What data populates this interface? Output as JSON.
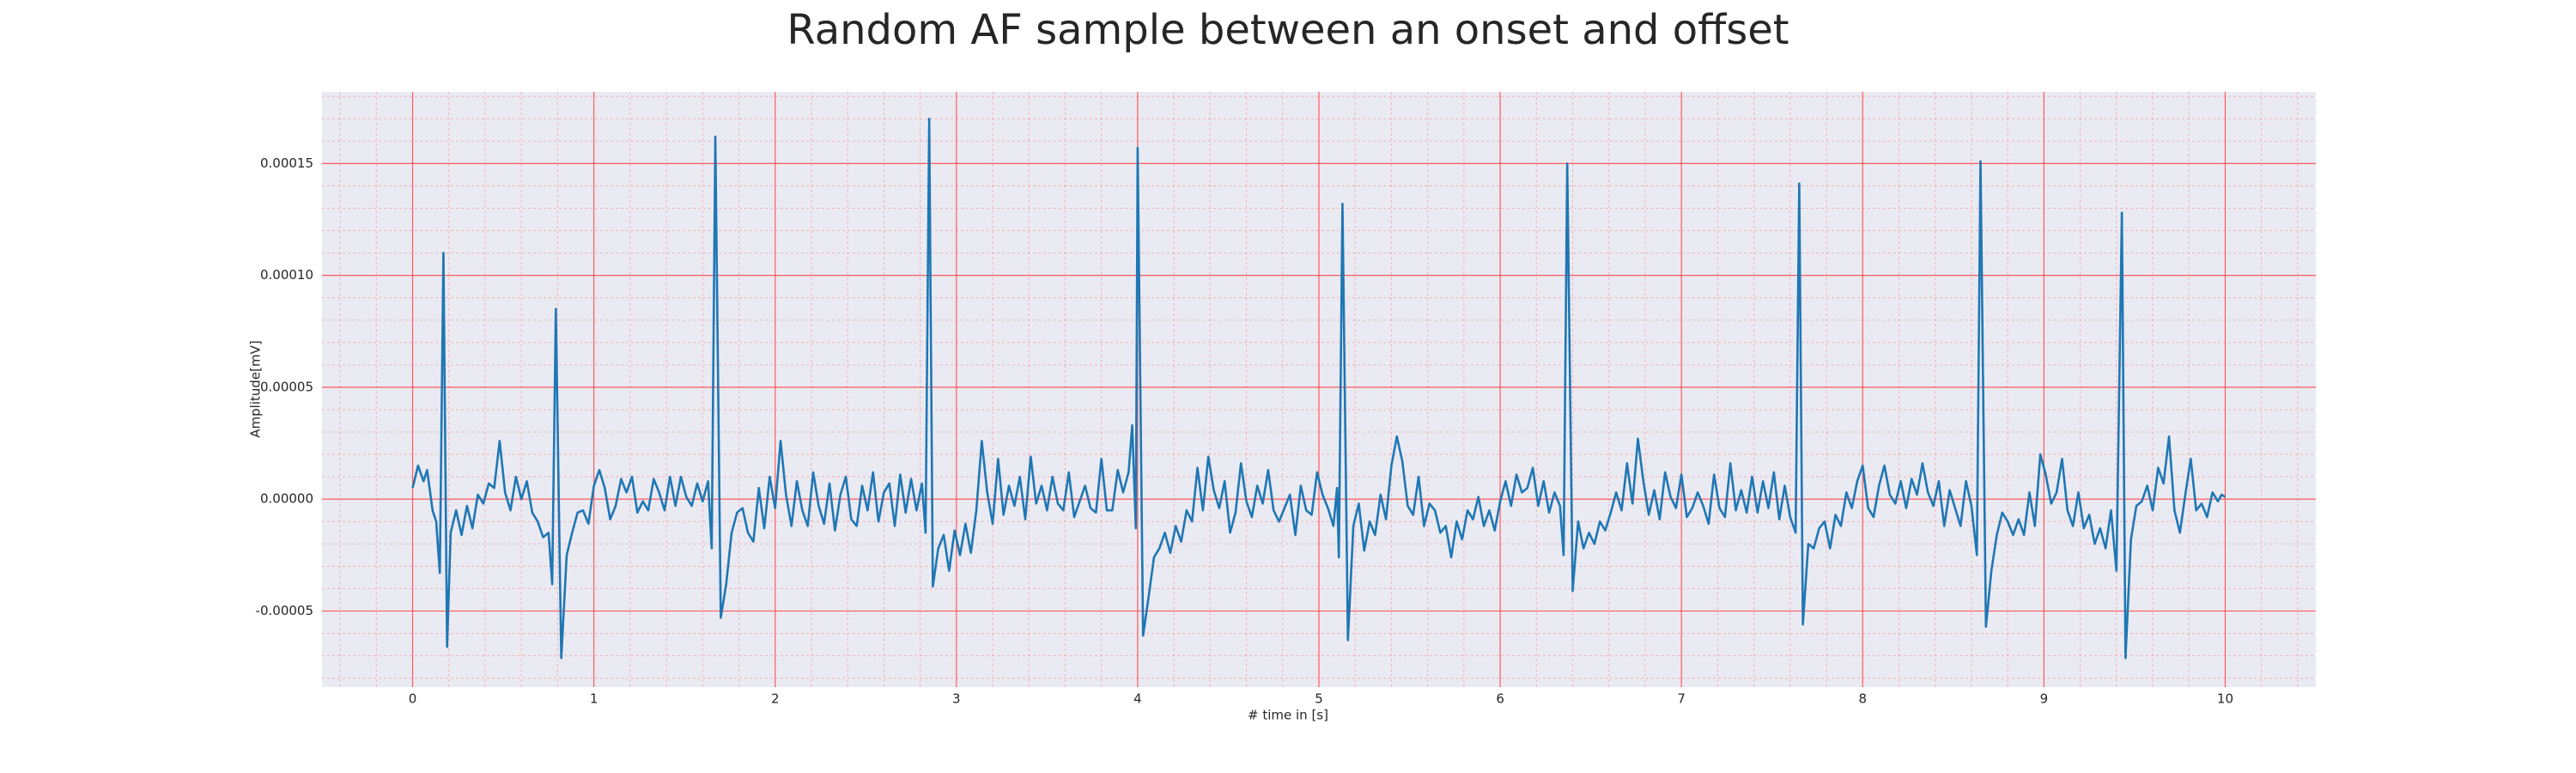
{
  "chart_data": {
    "type": "line",
    "title": "Random AF sample between an onset and offset",
    "xlabel": "# time in [s]",
    "ylabel": "Amplitude[mV]",
    "color": "#1f77b4",
    "background": "#eaeaf2",
    "grid": true,
    "grid_color": "#ff4b4b",
    "minor_grid": true,
    "xlim": [
      -0.5,
      10.5
    ],
    "ylim": [
      -8.4e-05,
      0.000182
    ],
    "xticks": [
      0,
      1,
      2,
      3,
      4,
      5,
      6,
      7,
      8,
      9,
      10
    ],
    "yticks": [
      {
        "value": -5e-05,
        "label": "-0.00005"
      },
      {
        "value": 0,
        "label": "0.00000"
      },
      {
        "value": 5e-05,
        "label": "0.00005"
      },
      {
        "value": 0.0001,
        "label": "0.00010"
      },
      {
        "value": 0.00015,
        "label": "0.00015"
      }
    ],
    "x": [
      0.0,
      0.03,
      0.06,
      0.08,
      0.11,
      0.13,
      0.15,
      0.17,
      0.19,
      0.21,
      0.24,
      0.27,
      0.3,
      0.33,
      0.36,
      0.39,
      0.42,
      0.45,
      0.48,
      0.51,
      0.54,
      0.57,
      0.6,
      0.63,
      0.66,
      0.69,
      0.72,
      0.75,
      0.77,
      0.79,
      0.82,
      0.85,
      0.88,
      0.91,
      0.94,
      0.97,
      1.0,
      1.03,
      1.06,
      1.09,
      1.12,
      1.15,
      1.18,
      1.21,
      1.24,
      1.27,
      1.3,
      1.33,
      1.36,
      1.39,
      1.42,
      1.45,
      1.48,
      1.51,
      1.54,
      1.57,
      1.6,
      1.63,
      1.65,
      1.67,
      1.7,
      1.73,
      1.76,
      1.79,
      1.82,
      1.85,
      1.88,
      1.91,
      1.94,
      1.97,
      2.0,
      2.03,
      2.06,
      2.09,
      2.12,
      2.15,
      2.18,
      2.21,
      2.24,
      2.27,
      2.3,
      2.33,
      2.36,
      2.39,
      2.42,
      2.45,
      2.48,
      2.51,
      2.54,
      2.57,
      2.6,
      2.63,
      2.66,
      2.69,
      2.72,
      2.75,
      2.78,
      2.81,
      2.83,
      2.85,
      2.87,
      2.9,
      2.93,
      2.96,
      2.99,
      3.02,
      3.05,
      3.08,
      3.11,
      3.14,
      3.17,
      3.2,
      3.23,
      3.26,
      3.29,
      3.32,
      3.35,
      3.38,
      3.41,
      3.44,
      3.47,
      3.5,
      3.53,
      3.56,
      3.59,
      3.62,
      3.65,
      3.68,
      3.71,
      3.74,
      3.77,
      3.8,
      3.83,
      3.86,
      3.89,
      3.92,
      3.95,
      3.97,
      3.99,
      4.0,
      4.03,
      4.06,
      4.09,
      4.12,
      4.15,
      4.18,
      4.21,
      4.24,
      4.27,
      4.3,
      4.33,
      4.36,
      4.39,
      4.42,
      4.45,
      4.48,
      4.51,
      4.54,
      4.57,
      4.6,
      4.63,
      4.66,
      4.69,
      4.72,
      4.75,
      4.78,
      4.81,
      4.84,
      4.87,
      4.9,
      4.93,
      4.96,
      4.99,
      5.02,
      5.05,
      5.08,
      5.1,
      5.11,
      5.13,
      5.16,
      5.19,
      5.22,
      5.25,
      5.28,
      5.31,
      5.34,
      5.37,
      5.4,
      5.43,
      5.46,
      5.49,
      5.52,
      5.55,
      5.58,
      5.61,
      5.64,
      5.67,
      5.7,
      5.73,
      5.76,
      5.79,
      5.82,
      5.85,
      5.88,
      5.91,
      5.94,
      5.97,
      6.0,
      6.03,
      6.06,
      6.09,
      6.12,
      6.15,
      6.18,
      6.21,
      6.24,
      6.27,
      6.3,
      6.33,
      6.35,
      6.37,
      6.4,
      6.43,
      6.46,
      6.49,
      6.52,
      6.55,
      6.58,
      6.61,
      6.64,
      6.67,
      6.7,
      6.73,
      6.76,
      6.79,
      6.82,
      6.85,
      6.88,
      6.91,
      6.94,
      6.97,
      7.0,
      7.03,
      7.06,
      7.09,
      7.12,
      7.15,
      7.18,
      7.21,
      7.24,
      7.27,
      7.3,
      7.33,
      7.36,
      7.39,
      7.42,
      7.45,
      7.48,
      7.51,
      7.54,
      7.57,
      7.6,
      7.63,
      7.65,
      7.67,
      7.7,
      7.73,
      7.76,
      7.79,
      7.82,
      7.85,
      7.88,
      7.91,
      7.94,
      7.97,
      8.0,
      8.03,
      8.06,
      8.09,
      8.12,
      8.15,
      8.18,
      8.21,
      8.24,
      8.27,
      8.3,
      8.33,
      8.36,
      8.39,
      8.42,
      8.45,
      8.48,
      8.51,
      8.54,
      8.57,
      8.6,
      8.63,
      8.65,
      8.68,
      8.71,
      8.74,
      8.77,
      8.8,
      8.83,
      8.86,
      8.89,
      8.92,
      8.95,
      8.98,
      9.01,
      9.04,
      9.07,
      9.1,
      9.13,
      9.16,
      9.19,
      9.22,
      9.25,
      9.28,
      9.31,
      9.34,
      9.37,
      9.4,
      9.43,
      9.45,
      9.48,
      9.51,
      9.54,
      9.57,
      9.6,
      9.63,
      9.66,
      9.69,
      9.72,
      9.75,
      9.78,
      9.81,
      9.84,
      9.87,
      9.9,
      9.93,
      9.96,
      9.98,
      10.0
    ],
    "values": [
      5e-06,
      1.5e-05,
      8e-06,
      1.3e-05,
      -5e-06,
      -1e-05,
      -3.3e-05,
      0.00011,
      -6.6e-05,
      -1.5e-05,
      -5e-06,
      -1.6e-05,
      -3e-06,
      -1.3e-05,
      2e-06,
      -2e-06,
      7e-06,
      5e-06,
      2.6e-05,
      3e-06,
      -5e-06,
      1e-05,
      0,
      8e-06,
      -6e-06,
      -1e-05,
      -1.7e-05,
      -1.5e-05,
      -3.8e-05,
      8.5e-05,
      -7.1e-05,
      -2.5e-05,
      -1.5e-05,
      -6e-06,
      -5e-06,
      -1.1e-05,
      6e-06,
      1.3e-05,
      5e-06,
      -9e-06,
      -3e-06,
      9e-06,
      3e-06,
      1e-05,
      -6e-06,
      -1e-06,
      -5e-06,
      9e-06,
      3e-06,
      -5e-06,
      1e-05,
      -3e-06,
      1e-05,
      1e-06,
      -3e-06,
      7e-06,
      -1e-06,
      8e-06,
      -2.2e-05,
      0.000162,
      -5.3e-05,
      -3.8e-05,
      -1.5e-05,
      -6e-06,
      -4e-06,
      -1.5e-05,
      -1.9e-05,
      5e-06,
      -1.3e-05,
      1e-05,
      -4e-06,
      2.6e-05,
      2e-06,
      -1.2e-05,
      8e-06,
      -5e-06,
      -1.2e-05,
      1.2e-05,
      -3e-06,
      -1.1e-05,
      7e-06,
      -1.4e-05,
      2e-06,
      1e-05,
      -9e-06,
      -1.2e-05,
      6e-06,
      -5e-06,
      1.2e-05,
      -1e-05,
      3e-06,
      7e-06,
      -1.2e-05,
      1.1e-05,
      -6e-06,
      9e-06,
      -5e-06,
      7e-06,
      -1.5e-05,
      0.00017,
      -3.9e-05,
      -2.2e-05,
      -1.6e-05,
      -3.2e-05,
      -1.4e-05,
      -2.5e-05,
      -1.1e-05,
      -2.4e-05,
      -5e-06,
      2.6e-05,
      3e-06,
      -1.1e-05,
      1.8e-05,
      -7e-06,
      6e-06,
      -3e-06,
      1e-05,
      -9e-06,
      1.9e-05,
      -2e-06,
      6e-06,
      -5e-06,
      1e-05,
      -2e-06,
      -5e-06,
      1.2e-05,
      -8e-06,
      -1e-06,
      6e-06,
      -4e-06,
      -6e-06,
      1.8e-05,
      -5e-06,
      -5e-06,
      1.3e-05,
      3e-06,
      1.2e-05,
      3.3e-05,
      -1.3e-05,
      0.000157,
      -6.1e-05,
      -4.4e-05,
      -2.6e-05,
      -2.2e-05,
      -1.5e-05,
      -2.4e-05,
      -1.2e-05,
      -1.9e-05,
      -5e-06,
      -1e-05,
      1.4e-05,
      -5e-06,
      1.9e-05,
      4e-06,
      -4e-06,
      8e-06,
      -1.5e-05,
      -6e-06,
      1.6e-05,
      -1e-06,
      -8e-06,
      6e-06,
      -2e-06,
      1.3e-05,
      -5e-06,
      -1e-05,
      -4e-06,
      2e-06,
      -1.6e-05,
      6e-06,
      -5e-06,
      -7e-06,
      1.2e-05,
      2e-06,
      -4e-06,
      -1.2e-05,
      5e-06,
      -2.6e-05,
      0.000132,
      -6.3e-05,
      -1.2e-05,
      -2e-06,
      -2.3e-05,
      -1e-05,
      -1.6e-05,
      2e-06,
      -9e-06,
      1.5e-05,
      2.8e-05,
      1.7e-05,
      -3e-06,
      -7e-06,
      1e-05,
      -1.2e-05,
      -2e-06,
      -5e-06,
      -1.5e-05,
      -1.2e-05,
      -2.6e-05,
      -1e-05,
      -1.8e-05,
      -5e-06,
      -9e-06,
      1e-06,
      -1.2e-05,
      -5e-06,
      -1.4e-05,
      -1e-06,
      8e-06,
      -3e-06,
      1.1e-05,
      3e-06,
      5e-06,
      1.4e-05,
      -3e-06,
      8e-06,
      -6e-06,
      3e-06,
      -3e-06,
      -2.5e-05,
      0.00015,
      -4.1e-05,
      -1e-05,
      -2.2e-05,
      -1.5e-05,
      -2e-05,
      -1e-05,
      -1.4e-05,
      -6e-06,
      3e-06,
      -5e-06,
      1.6e-05,
      -2e-06,
      2.7e-05,
      8e-06,
      -7e-06,
      4e-06,
      -9e-06,
      1.2e-05,
      1e-06,
      -4e-06,
      1.1e-05,
      -8e-06,
      -4e-06,
      3e-06,
      -3e-06,
      -1.1e-05,
      1.1e-05,
      -4e-06,
      -8e-06,
      1.6e-05,
      -5e-06,
      4e-06,
      -6e-06,
      1e-05,
      -6e-06,
      8e-06,
      -4e-06,
      1.2e-05,
      -9e-06,
      6e-06,
      -8e-06,
      -1.5e-05,
      0.000141,
      -5.6e-05,
      -2e-05,
      -2.2e-05,
      -1.3e-05,
      -1e-05,
      -2.2e-05,
      -7e-06,
      -1.2e-05,
      3e-06,
      -4e-06,
      8e-06,
      1.5e-05,
      -4e-06,
      -8e-06,
      6e-06,
      1.5e-05,
      2e-06,
      -2e-06,
      8e-06,
      -4e-06,
      9e-06,
      2e-06,
      1.6e-05,
      3e-06,
      -3e-06,
      8e-06,
      -1.2e-05,
      4e-06,
      -4e-06,
      -1.2e-05,
      8e-06,
      -3e-06,
      -2.5e-05,
      0.000151,
      -5.7e-05,
      -3.2e-05,
      -1.6e-05,
      -6e-06,
      -1e-05,
      -1.6e-05,
      -9e-06,
      -1.6e-05,
      3e-06,
      -1.2e-05,
      2e-05,
      1.1e-05,
      -2e-06,
      3e-06,
      1.8e-05,
      -5e-06,
      -1.2e-05,
      3e-06,
      -1.3e-05,
      -7e-06,
      -2e-05,
      -1.3e-05,
      -2.2e-05,
      -5e-06,
      -3.2e-05,
      0.000128,
      -7.1e-05,
      -1.8e-05,
      -3e-06,
      -1e-06,
      6e-06,
      -5e-06,
      1.4e-05,
      7e-06,
      2.8e-05,
      -5e-06,
      -1.5e-05,
      2e-06,
      1.8e-05,
      -5e-06,
      -2e-06,
      -8e-06,
      3e-06,
      -1e-06,
      2e-06,
      1e-06
    ]
  }
}
